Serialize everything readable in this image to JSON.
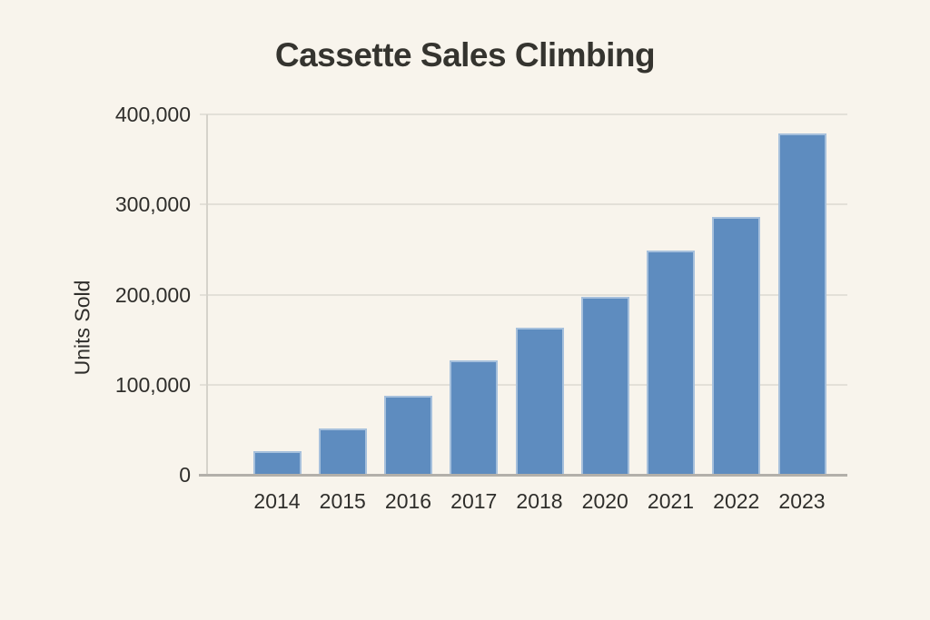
{
  "chart_data": {
    "type": "bar",
    "title": "Cassette Sales Climbing",
    "xlabel": "",
    "ylabel": "Units Sold",
    "categories": [
      "2014",
      "2015",
      "2016",
      "2017",
      "2018",
      "2020",
      "2021",
      "2022",
      "2023"
    ],
    "values": [
      26000,
      51000,
      88000,
      127000,
      163000,
      197000,
      249000,
      286000,
      379000
    ],
    "ylim": [
      0,
      400000
    ],
    "yticks": [
      0,
      100000,
      200000,
      300000,
      400000
    ],
    "ytick_labels": [
      "0",
      "100,000",
      "200,000",
      "300,000",
      "400,000"
    ],
    "grid": true,
    "legend": false,
    "bar_color": "#5e8cbf",
    "background_color": "#f8f4ec",
    "text_color": "#2f2e2b"
  }
}
